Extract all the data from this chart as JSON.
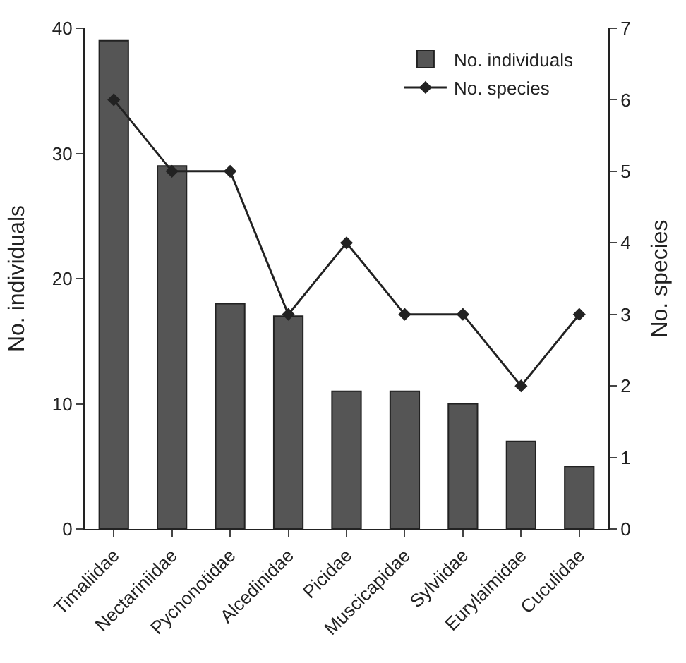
{
  "chart_data": {
    "type": "bar",
    "categories": [
      "Timaliidae",
      "Nectariniidae",
      "Pycnonotidae",
      "Alcedinidae",
      "Picidae",
      "Muscicapidae",
      "Sylviidae",
      "Eurylaimidae",
      "Cuculidae"
    ],
    "series": [
      {
        "name": "No. individuals",
        "color": "#555555",
        "values": [
          39,
          29,
          18,
          17,
          11,
          11,
          10,
          7,
          5
        ]
      },
      {
        "name": "No. species",
        "color": "#222222",
        "type": "line",
        "axis": "y2",
        "marker": "diamond",
        "values": [
          6,
          5,
          5,
          3,
          4,
          3,
          3,
          2,
          3
        ]
      }
    ],
    "ylabel": "No. individuals",
    "y2label": "No. species",
    "ylim": [
      0,
      40
    ],
    "yticks": [
      0,
      10,
      20,
      30,
      40
    ],
    "y2lim": [
      0,
      7
    ],
    "y2ticks": [
      0,
      1,
      2,
      3,
      4,
      5,
      6,
      7
    ],
    "legend": "top right"
  }
}
